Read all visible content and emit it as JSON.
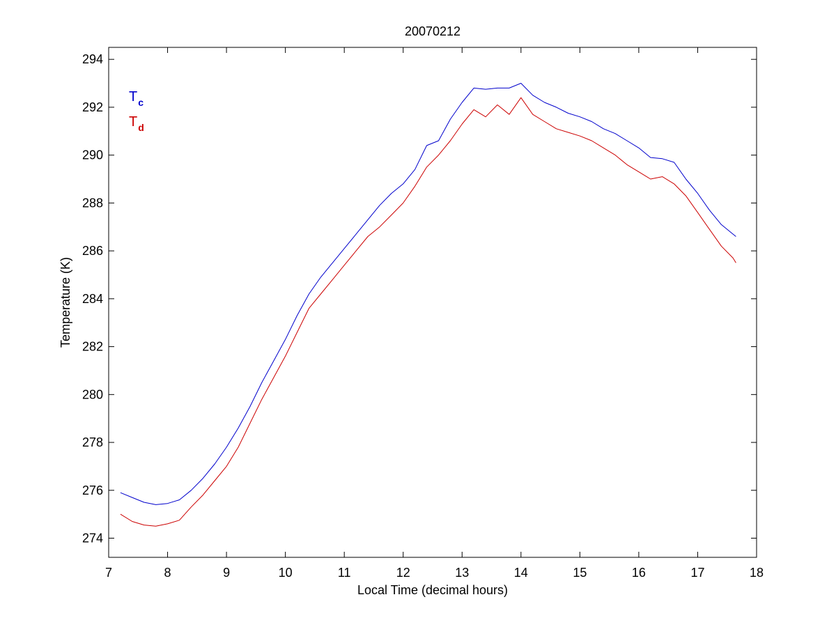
{
  "chart_data": {
    "type": "line",
    "title": "20070212",
    "xlabel": "Local Time (decimal hours)",
    "ylabel": "Temperature (K)",
    "xlim": [
      7,
      18
    ],
    "ylim": [
      273.2,
      294.5
    ],
    "xticks": [
      7,
      8,
      9,
      10,
      11,
      12,
      13,
      14,
      15,
      16,
      17,
      18
    ],
    "yticks": [
      274,
      276,
      278,
      280,
      282,
      284,
      286,
      288,
      290,
      292,
      294
    ],
    "grid": false,
    "legend_position": "top-left",
    "series": [
      {
        "name": "Tc",
        "legend_main": "T",
        "legend_sub": "c",
        "color": "#0000cc",
        "x": [
          7.2,
          7.4,
          7.6,
          7.8,
          8.0,
          8.2,
          8.4,
          8.6,
          8.8,
          9.0,
          9.2,
          9.4,
          9.6,
          9.8,
          10.0,
          10.2,
          10.4,
          10.6,
          10.8,
          11.0,
          11.2,
          11.4,
          11.6,
          11.8,
          12.0,
          12.2,
          12.4,
          12.6,
          12.8,
          13.0,
          13.2,
          13.4,
          13.6,
          13.8,
          14.0,
          14.2,
          14.4,
          14.6,
          14.8,
          15.0,
          15.2,
          15.4,
          15.6,
          15.8,
          16.0,
          16.2,
          16.4,
          16.6,
          16.8,
          17.0,
          17.2,
          17.4,
          17.6,
          17.65
        ],
        "y": [
          275.9,
          275.7,
          275.5,
          275.4,
          275.45,
          275.6,
          276.0,
          276.5,
          277.1,
          277.8,
          278.6,
          279.5,
          280.5,
          281.4,
          282.3,
          283.3,
          284.2,
          284.9,
          285.5,
          286.1,
          286.7,
          287.3,
          287.9,
          288.4,
          288.8,
          289.4,
          290.4,
          290.6,
          291.5,
          292.2,
          292.8,
          292.75,
          292.8,
          292.8,
          293.0,
          292.5,
          292.2,
          292.0,
          291.75,
          291.6,
          291.4,
          291.1,
          290.9,
          290.6,
          290.3,
          289.9,
          289.85,
          289.7,
          289.0,
          288.4,
          287.7,
          287.1,
          286.7,
          286.6
        ]
      },
      {
        "name": "Td",
        "legend_main": "T",
        "legend_sub": "d",
        "color": "#cc0000",
        "x": [
          7.2,
          7.4,
          7.6,
          7.8,
          8.0,
          8.2,
          8.4,
          8.6,
          8.8,
          9.0,
          9.2,
          9.4,
          9.6,
          9.8,
          10.0,
          10.2,
          10.4,
          10.6,
          10.8,
          11.0,
          11.2,
          11.4,
          11.6,
          11.8,
          12.0,
          12.2,
          12.4,
          12.6,
          12.8,
          13.0,
          13.2,
          13.4,
          13.6,
          13.8,
          14.0,
          14.2,
          14.4,
          14.6,
          14.8,
          15.0,
          15.2,
          15.4,
          15.6,
          15.8,
          16.0,
          16.2,
          16.4,
          16.6,
          16.8,
          17.0,
          17.2,
          17.4,
          17.6,
          17.65
        ],
        "y": [
          275.0,
          274.7,
          274.55,
          274.5,
          274.6,
          274.75,
          275.3,
          275.8,
          276.4,
          277.0,
          277.8,
          278.8,
          279.8,
          280.7,
          281.6,
          282.6,
          283.6,
          284.2,
          284.8,
          285.4,
          286.0,
          286.6,
          287.0,
          287.5,
          288.0,
          288.7,
          289.5,
          290.0,
          290.6,
          291.3,
          291.9,
          291.6,
          292.1,
          291.7,
          292.4,
          291.7,
          291.4,
          291.1,
          290.95,
          290.8,
          290.6,
          290.3,
          290.0,
          289.6,
          289.3,
          289.0,
          289.1,
          288.8,
          288.3,
          287.6,
          286.9,
          286.2,
          285.7,
          285.5
        ]
      }
    ]
  }
}
